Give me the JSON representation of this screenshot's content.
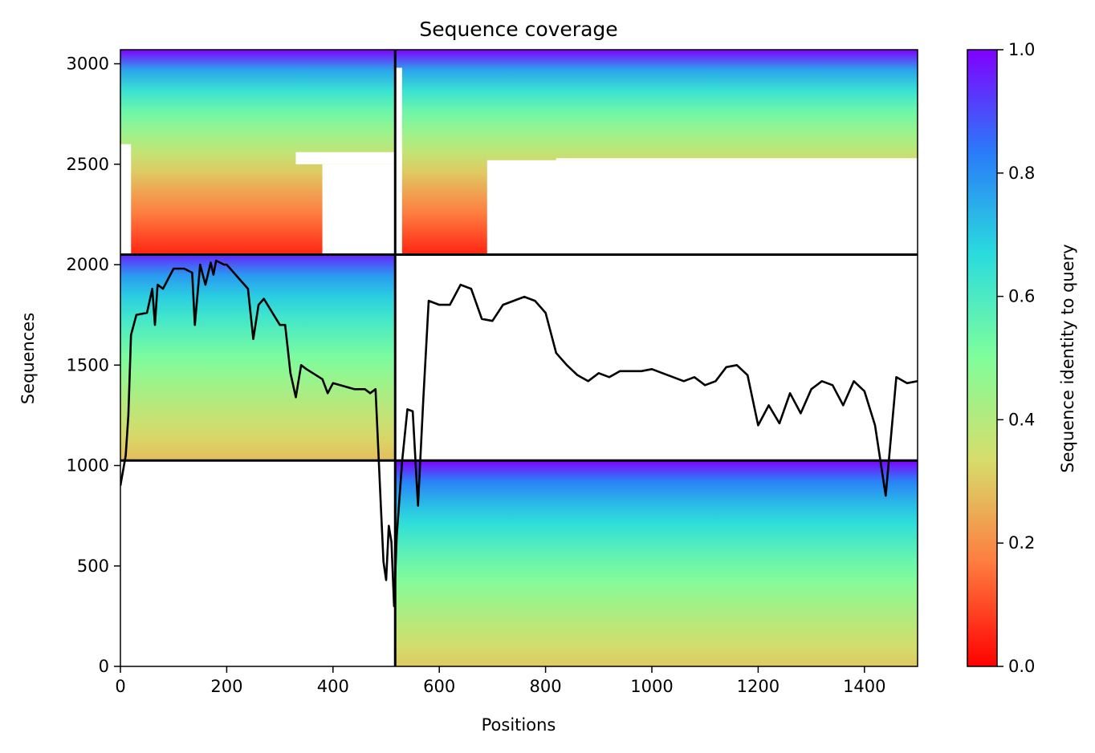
{
  "chart_data": {
    "type": "heatmap",
    "title": "Sequence coverage",
    "xlabel": "Positions",
    "ylabel": "Sequences",
    "xlim": [
      0,
      1500
    ],
    "ylim": [
      0,
      3070
    ],
    "xticks": [
      0,
      200,
      400,
      600,
      800,
      1000,
      1200,
      1400
    ],
    "yticks": [
      0,
      500,
      1000,
      1500,
      2000,
      2500,
      3000
    ],
    "colorbar": {
      "label": "Sequence identity to query",
      "colormap": "rainbow_r",
      "range": [
        0.0,
        1.0
      ],
      "ticks": [
        0.0,
        0.2,
        0.4,
        0.6,
        0.8,
        1.0
      ],
      "colors": [
        "#ff0000",
        "#ff7b3f",
        "#d7dc6a",
        "#80fe9b",
        "#2adcdd",
        "#2a7bf8",
        "#8000ff"
      ]
    },
    "separators": {
      "vertical_x": 517,
      "horizontal_y": [
        1025,
        2050
      ]
    },
    "blocks": [
      {
        "name": "upper-left",
        "x": [
          0,
          517
        ],
        "y": [
          2050,
          3070
        ],
        "identity_top": 1.0,
        "identity_bottom": 0.05
      },
      {
        "name": "upper-right",
        "x": [
          517,
          1500
        ],
        "y": [
          2050,
          3070
        ],
        "identity_top": 1.0,
        "identity_bottom": 0.05
      },
      {
        "name": "middle-left",
        "x": [
          0,
          517
        ],
        "y": [
          1025,
          2050
        ],
        "identity_top": 0.95,
        "identity_bottom": 0.28
      },
      {
        "name": "lower-right",
        "x": [
          517,
          1500
        ],
        "y": [
          0,
          1025
        ],
        "identity_top": 1.0,
        "identity_bottom": 0.3
      }
    ],
    "coverage_line": {
      "color": "#000000",
      "x": [
        0,
        10,
        15,
        20,
        30,
        50,
        60,
        65,
        70,
        80,
        100,
        120,
        135,
        140,
        150,
        160,
        170,
        175,
        180,
        195,
        200,
        230,
        240,
        250,
        260,
        270,
        300,
        310,
        320,
        330,
        340,
        350,
        380,
        390,
        400,
        440,
        460,
        470,
        480,
        490,
        495,
        500,
        505,
        510,
        515,
        520,
        530,
        540,
        550,
        560,
        570,
        580,
        600,
        620,
        640,
        660,
        680,
        700,
        720,
        760,
        780,
        800,
        820,
        840,
        860,
        880,
        900,
        920,
        940,
        960,
        980,
        1000,
        1020,
        1040,
        1060,
        1080,
        1100,
        1120,
        1140,
        1160,
        1180,
        1200,
        1220,
        1240,
        1260,
        1280,
        1300,
        1320,
        1340,
        1360,
        1380,
        1400,
        1420,
        1440,
        1460,
        1480,
        1500
      ],
      "y": [
        900,
        1050,
        1250,
        1650,
        1750,
        1760,
        1880,
        1700,
        1900,
        1880,
        1980,
        1980,
        1960,
        1700,
        2000,
        1900,
        2010,
        1950,
        2020,
        2000,
        2000,
        1910,
        1880,
        1630,
        1800,
        1830,
        1700,
        1700,
        1460,
        1340,
        1500,
        1480,
        1430,
        1360,
        1410,
        1380,
        1380,
        1360,
        1380,
        800,
        520,
        430,
        700,
        620,
        300,
        650,
        1020,
        1280,
        1270,
        800,
        1330,
        1820,
        1800,
        1800,
        1900,
        1880,
        1730,
        1720,
        1800,
        1840,
        1820,
        1760,
        1560,
        1500,
        1450,
        1420,
        1460,
        1440,
        1470,
        1470,
        1470,
        1480,
        1460,
        1440,
        1420,
        1440,
        1400,
        1420,
        1490,
        1500,
        1450,
        1200,
        1300,
        1210,
        1360,
        1260,
        1380,
        1420,
        1400,
        1300,
        1420,
        1370,
        1200,
        850,
        1440,
        1410,
        1420
      ]
    }
  }
}
